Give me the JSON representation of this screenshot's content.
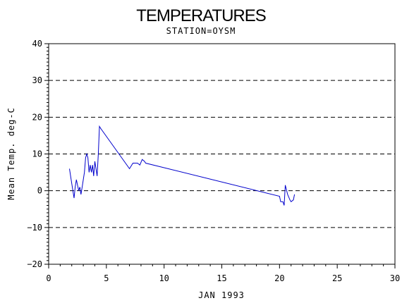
{
  "colors": {
    "series": "#0000cc",
    "grid": "#000000",
    "axis": "#000000",
    "background": "#ffffff"
  },
  "chart_data": {
    "type": "line",
    "title": "TEMPERATURES",
    "subtitle": "STATION=OYSM",
    "xlabel": "JAN 1993",
    "ylabel": "Mean Temp. deg-C",
    "xlim": [
      0,
      30
    ],
    "ylim": [
      -20,
      40
    ],
    "xticks": [
      0,
      5,
      10,
      15,
      20,
      25,
      30
    ],
    "yticks": [
      -20,
      -10,
      0,
      10,
      20,
      30,
      40
    ],
    "grid": "horizontal-dashed",
    "legend": "none",
    "series": [
      {
        "x": [
          1.8,
          2.0,
          2.2,
          2.3,
          2.4,
          2.6,
          2.7,
          2.8,
          2.9,
          3.0,
          3.1,
          3.2,
          3.3,
          3.4,
          3.5,
          3.6,
          3.7,
          3.8,
          3.9,
          4.0,
          4.1,
          4.2,
          4.3,
          4.4,
          4.5,
          7.0,
          7.3,
          7.7,
          7.9,
          8.1,
          8.3,
          8.4,
          20.0,
          20.1,
          20.3,
          20.4,
          20.5,
          20.7,
          20.9,
          21.0,
          21.2,
          21.3
        ],
        "y": [
          6,
          2,
          -2,
          1,
          3,
          0,
          1,
          -1,
          1,
          3,
          5,
          9,
          10,
          9,
          5,
          7,
          5,
          7,
          4,
          8,
          6,
          4,
          10,
          17.5,
          17,
          6,
          7.5,
          7.5,
          7,
          8.5,
          8,
          7.5,
          -1.5,
          -3,
          -3,
          -4,
          1.5,
          -1,
          -2.5,
          -3,
          -2.5,
          -1
        ]
      }
    ]
  }
}
